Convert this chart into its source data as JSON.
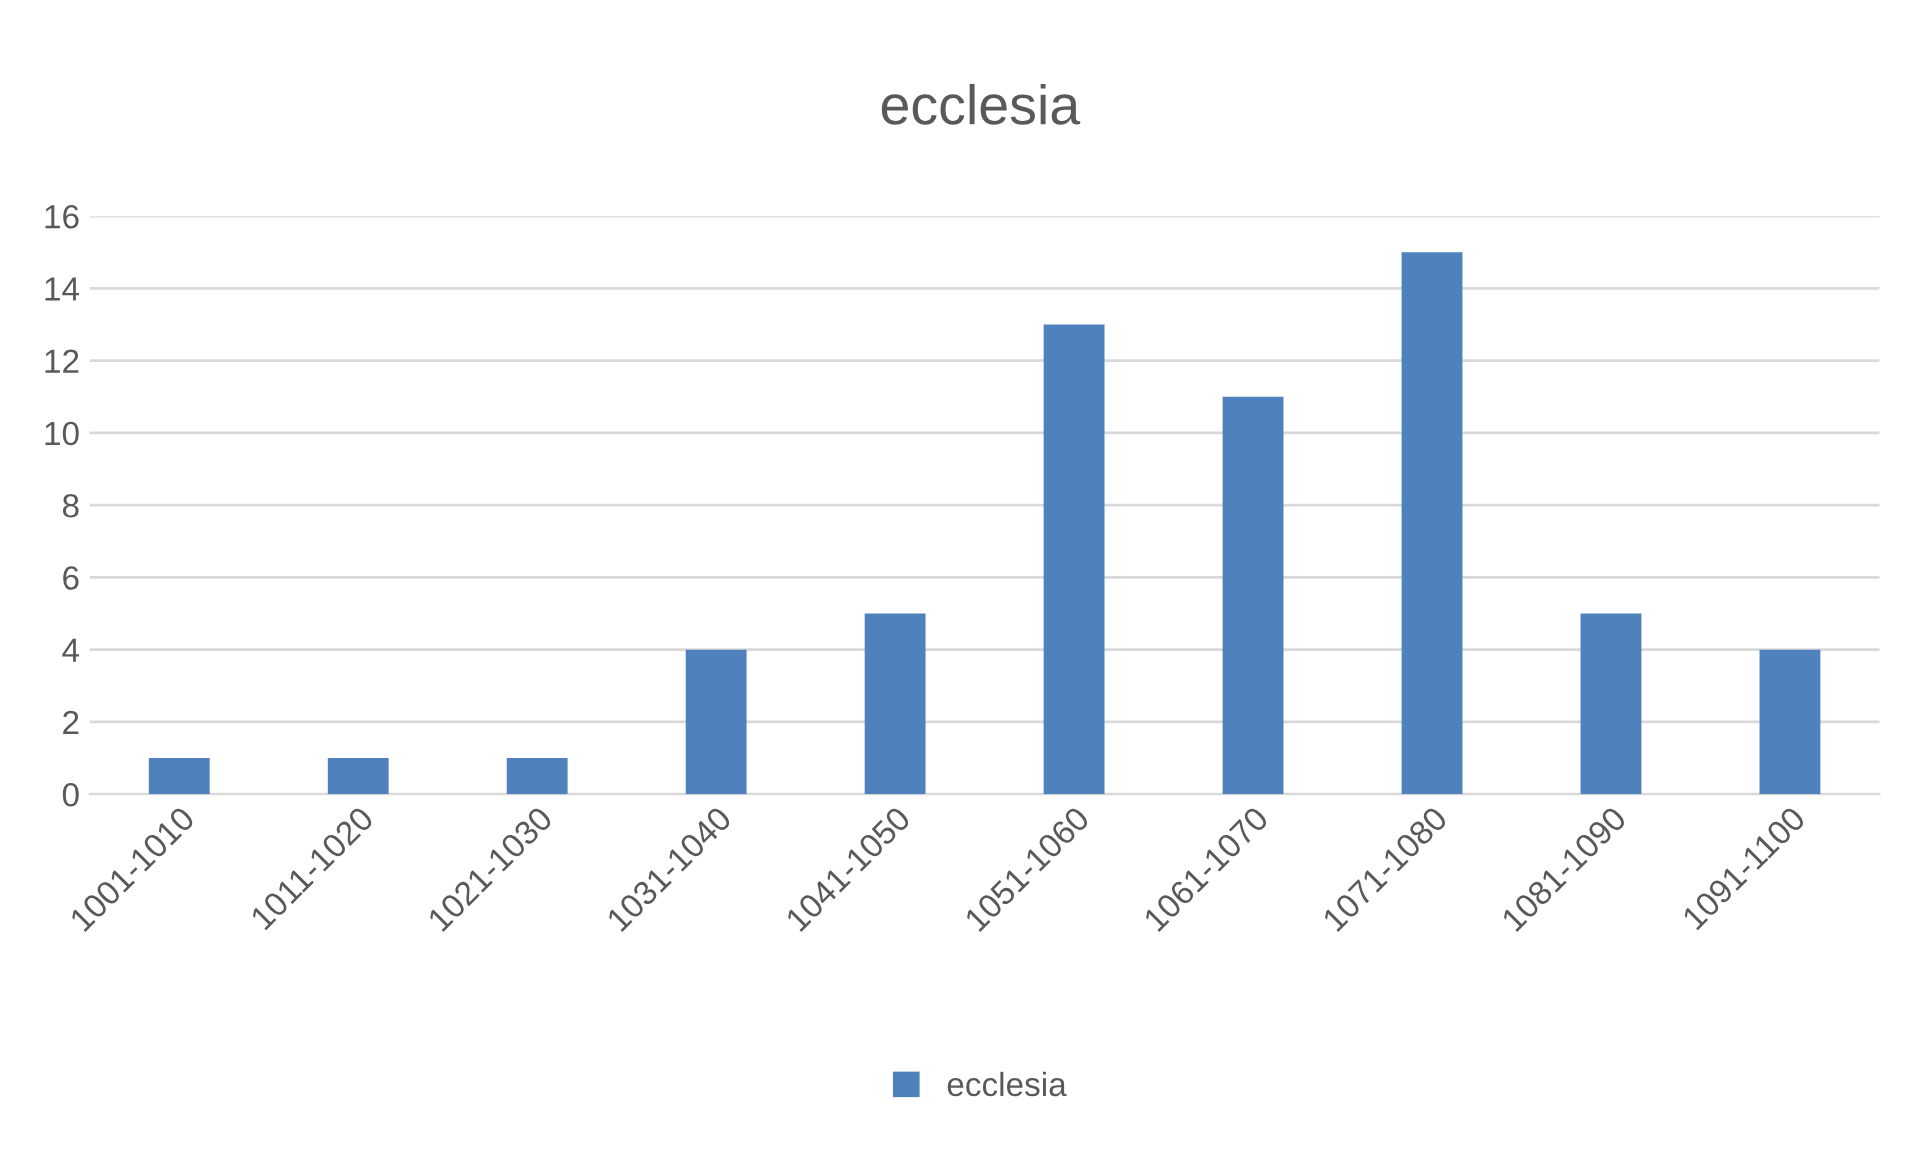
{
  "chart_data": {
    "type": "bar",
    "title": "ecclesia",
    "categories": [
      "1001-1010",
      "1011-1020",
      "1021-1030",
      "1031-1040",
      "1041-1050",
      "1051-1060",
      "1061-1070",
      "1071-1080",
      "1081-1090",
      "1091-1100"
    ],
    "series": [
      {
        "name": "ecclesia",
        "color": "#4f81bd",
        "values": [
          1,
          1,
          1,
          4,
          5,
          13,
          11,
          15,
          5,
          4
        ]
      }
    ],
    "ylim": [
      0,
      16
    ],
    "yticks": [
      0,
      2,
      4,
      6,
      8,
      10,
      12,
      14,
      16
    ],
    "grid": "y",
    "legend": "bottom"
  }
}
